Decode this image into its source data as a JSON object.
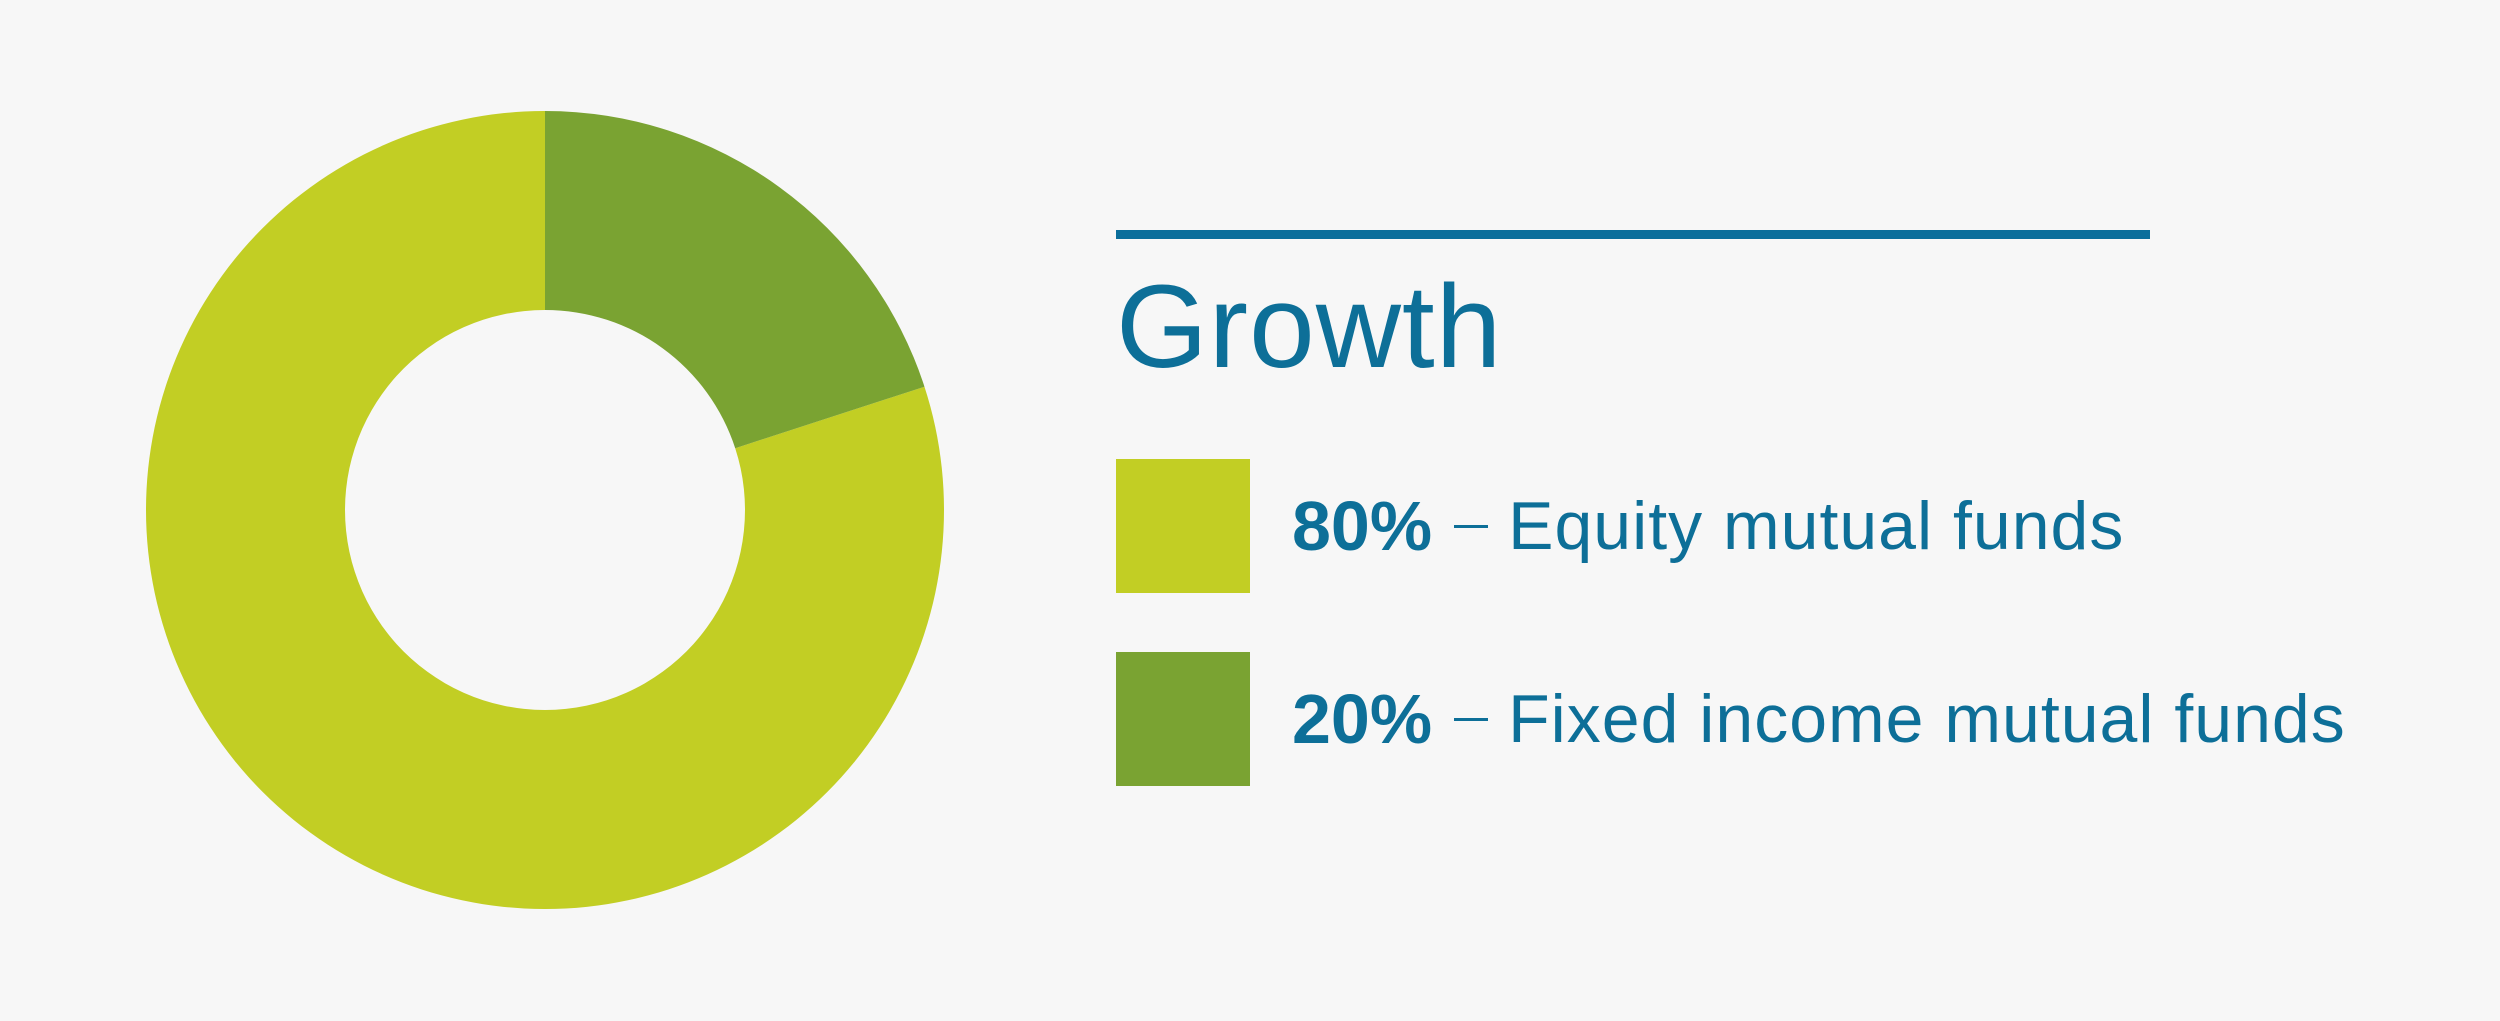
{
  "chart_data": {
    "type": "donut",
    "title": "Growth",
    "categories": [
      "Equity mutual funds",
      "Fixed income mutual funds"
    ],
    "values": [
      80,
      20
    ],
    "value_labels": [
      "80%",
      "20%"
    ],
    "colors": [
      "#c2ce24",
      "#7aa332"
    ]
  }
}
